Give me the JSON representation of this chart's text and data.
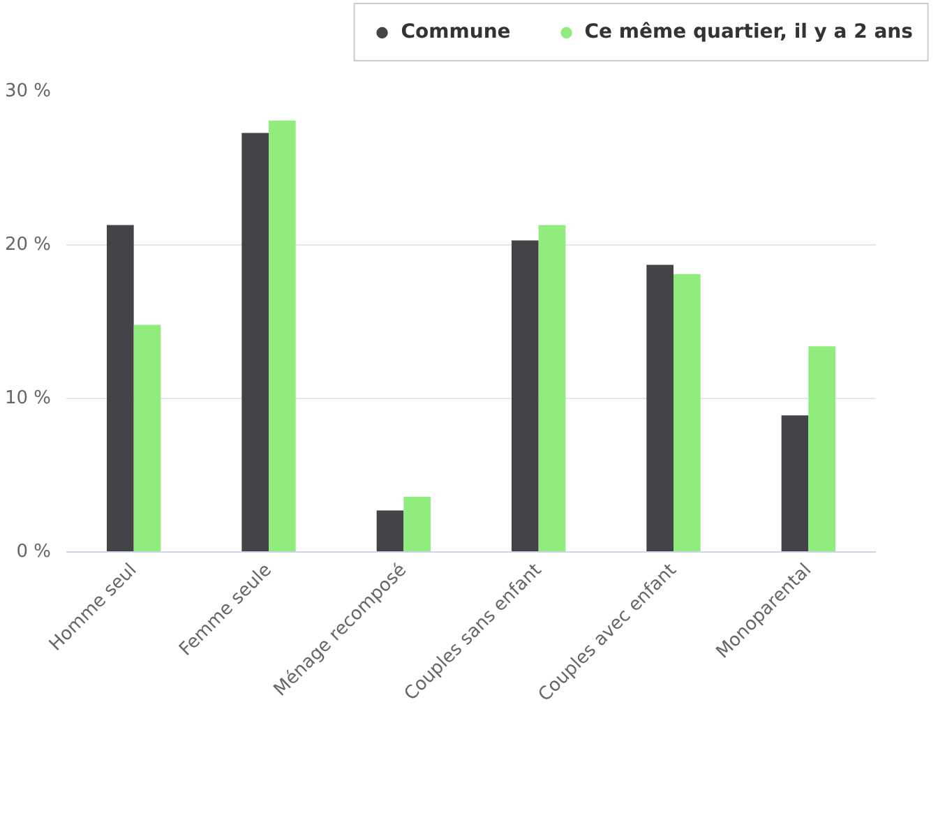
{
  "chart_data": {
    "type": "bar",
    "categories": [
      "Homme seul",
      "Femme seule",
      "Ménage recomposé",
      "Couples sans enfant",
      "Couples avec enfant",
      "Monoparental"
    ],
    "series": [
      {
        "name": "Commune",
        "color": "#434348",
        "values": [
          21.3,
          27.3,
          2.7,
          20.3,
          18.7,
          8.9
        ]
      },
      {
        "name": "Ce même quartier, il y a 2 ans",
        "color": "#90ed7d",
        "values": [
          14.8,
          28.1,
          3.6,
          21.3,
          18.1,
          13.4
        ]
      }
    ],
    "ylim": [
      0,
      30
    ],
    "yticks": [
      {
        "value": 0,
        "label": "0 %"
      },
      {
        "value": 10,
        "label": "10 %"
      },
      {
        "value": 20,
        "label": "20 %"
      },
      {
        "value": 30,
        "label": "30 %"
      }
    ],
    "grid": "y",
    "legend": "top right"
  }
}
